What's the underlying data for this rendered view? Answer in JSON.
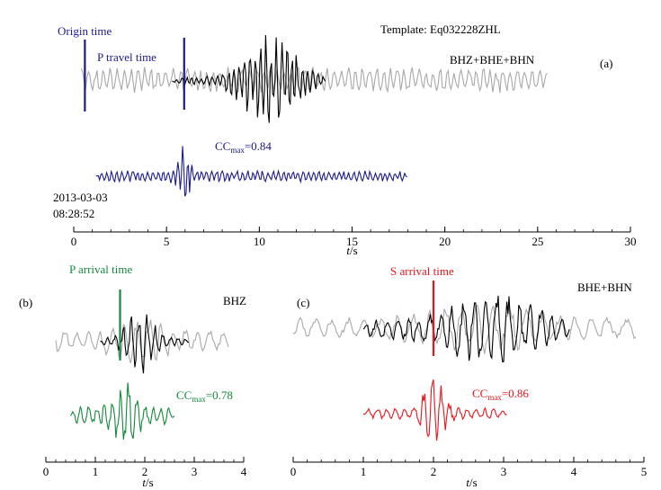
{
  "colors": {
    "gray": "#a8a8a8",
    "black": "#000000",
    "blue": "#1a1a8c",
    "green": "#15883c",
    "red": "#e8141c",
    "axis": "#000000"
  },
  "chart_data": [
    {
      "id": "a",
      "type": "line",
      "panel_label": "(a)",
      "title": "Template: Eq032228ZHL",
      "xlabel_italic": "t",
      "xlabel_unit": "/s",
      "xlim": [
        0,
        30
      ],
      "xticks": [
        0,
        5,
        10,
        15,
        20,
        25,
        30
      ],
      "annotations": {
        "origin_time": "Origin time",
        "p_travel_time": "P travel time",
        "components": "BHZ+BHE+BHN",
        "cc_prefix": "CC",
        "cc_sub": "max",
        "cc_value": "=0.84",
        "date": "2013-03-03",
        "time": "08:28:52"
      },
      "markers": [
        {
          "name": "origin-time-marker",
          "x": 0.6
        },
        {
          "name": "p-travel-time-marker",
          "x": 5.95
        }
      ],
      "series": [
        {
          "name": "continuous record",
          "color_key": "gray",
          "x_start": 0.4,
          "x_end": 25.6,
          "amplitude": 0.35,
          "burst_center": null
        },
        {
          "name": "template",
          "color_key": "black",
          "x_start": 5.3,
          "x_end": 13.6,
          "amplitude": 1.0,
          "burst_center": 10.6
        },
        {
          "name": "detected waveform",
          "color_key": "blue",
          "x_start": 1.2,
          "x_end": 18.0,
          "amplitude": 0.35,
          "burst_center": 5.9
        }
      ]
    },
    {
      "id": "b",
      "type": "line",
      "panel_label": "(b)",
      "xlabel_italic": "t",
      "xlabel_unit": "/s",
      "xlim": [
        0,
        4
      ],
      "xticks": [
        0,
        1,
        2,
        3,
        4
      ],
      "annotations": {
        "arrival": "P arrival time",
        "components": "BHZ",
        "cc_prefix": "CC",
        "cc_sub": "max",
        "cc_value": "=0.78"
      },
      "markers": [
        {
          "name": "p-arrival-marker",
          "x": 1.5
        }
      ],
      "series": [
        {
          "name": "continuous record",
          "color_key": "gray",
          "x_start": 0.2,
          "x_end": 3.7
        },
        {
          "name": "template",
          "color_key": "black",
          "x_start": 1.1,
          "x_end": 2.9
        },
        {
          "name": "detected waveform",
          "color_key": "green",
          "x_start": 0.5,
          "x_end": 2.6
        }
      ]
    },
    {
      "id": "c",
      "type": "line",
      "panel_label": "(c)",
      "xlabel_italic": "t",
      "xlabel_unit": "/s",
      "xlim": [
        0,
        5
      ],
      "xticks": [
        0,
        1,
        2,
        3,
        4,
        5
      ],
      "annotations": {
        "arrival": "S arrival time",
        "components": "BHE+BHN",
        "cc_prefix": "CC",
        "cc_sub": "max",
        "cc_value": "=0.86"
      },
      "markers": [
        {
          "name": "s-arrival-marker",
          "x": 2.0
        }
      ],
      "series": [
        {
          "name": "continuous record",
          "color_key": "gray",
          "x_start": 0.0,
          "x_end": 4.9
        },
        {
          "name": "template",
          "color_key": "black",
          "x_start": 1.0,
          "x_end": 3.95
        },
        {
          "name": "detected waveform",
          "color_key": "red",
          "x_start": 1.0,
          "x_end": 3.05
        }
      ]
    }
  ]
}
